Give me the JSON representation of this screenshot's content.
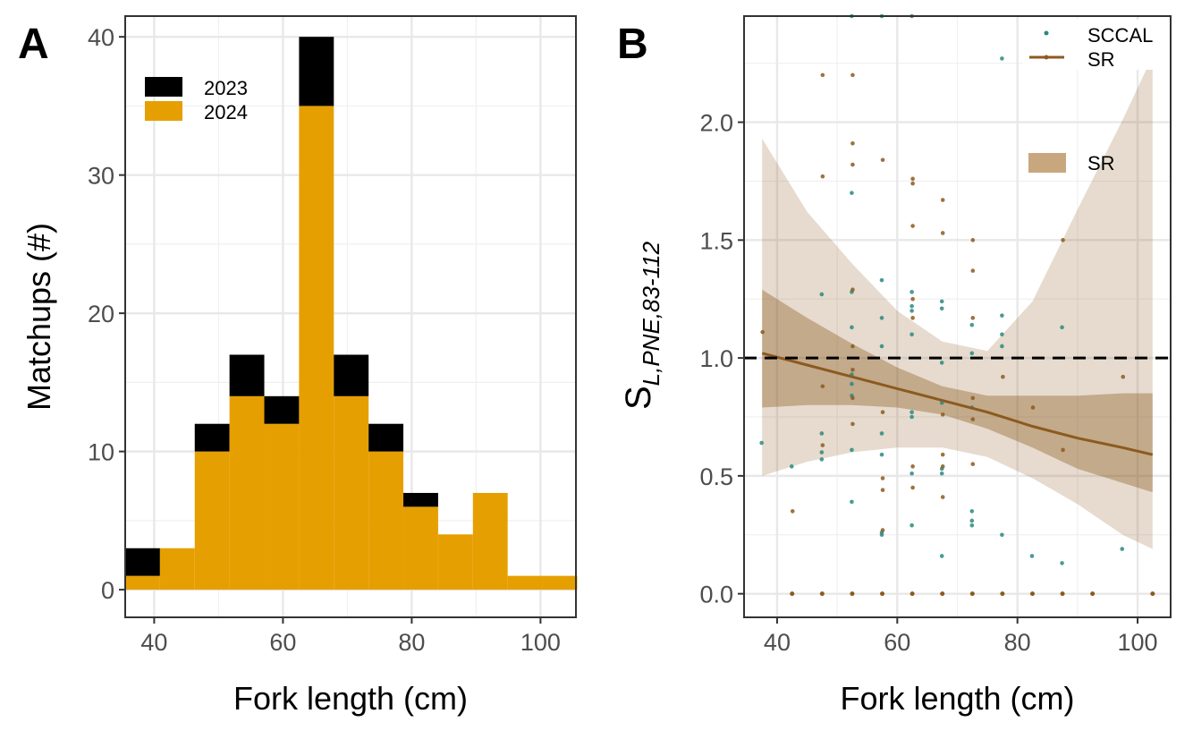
{
  "chart_data": [
    {
      "panel": "A",
      "type": "bar",
      "stacked": true,
      "xlabel": "Fork length (cm)",
      "ylabel": "Matchups (#)",
      "xlim": [
        35.5,
        105.5
      ],
      "ylim": [
        -2,
        41.5
      ],
      "xticks": [
        40,
        60,
        80,
        100
      ],
      "yticks": [
        0,
        10,
        20,
        30,
        40
      ],
      "bin_width": 5.4,
      "bin_centers": [
        38.2,
        43.6,
        49.0,
        54.4,
        59.8,
        65.2,
        70.6,
        76.0,
        81.4,
        86.8,
        92.2,
        97.6,
        103.0
      ],
      "series": [
        {
          "name": "2024",
          "color": "#E69F00",
          "values": [
            1,
            3,
            10,
            14,
            12,
            35,
            14,
            10,
            6,
            4,
            7,
            1,
            1
          ]
        },
        {
          "name": "2023",
          "color": "#000000",
          "values": [
            2,
            0,
            2,
            3,
            2,
            5,
            3,
            2,
            1,
            0,
            0,
            0,
            0
          ]
        }
      ],
      "legend": {
        "position": "top-left",
        "order": [
          "2023",
          "2024"
        ]
      },
      "grid": true
    },
    {
      "panel": "B",
      "type": "scatter",
      "xlabel": "Fork length (cm)",
      "ylabel_main": "S",
      "ylabel_sub": "L,PNE,83-112",
      "xlim": [
        34.5,
        105.5
      ],
      "ylim": [
        -0.1,
        2.45
      ],
      "xticks": [
        40,
        60,
        80,
        100
      ],
      "yticks": [
        0.0,
        0.5,
        1.0,
        1.5,
        2.0
      ],
      "ytick_labels": [
        "0.0",
        "0.5",
        "1.0",
        "1.5",
        "2.0"
      ],
      "reference_line": {
        "y": 1.0,
        "style": "dashed",
        "color": "#000000"
      },
      "grid": true,
      "series": [
        {
          "name": "SCCAL",
          "color": "#2A8A80",
          "points": [
            [
              37.5,
              0.64
            ],
            [
              42.5,
              0.54
            ],
            [
              47.5,
              0.57
            ],
            [
              47.5,
              0.6
            ],
            [
              47.5,
              0.68
            ],
            [
              47.5,
              1.27
            ],
            [
              52.5,
              0.39
            ],
            [
              52.5,
              0.61
            ],
            [
              52.5,
              0.84
            ],
            [
              52.5,
              0.89
            ],
            [
              52.5,
              0.93
            ],
            [
              52.5,
              1.13
            ],
            [
              52.5,
              1.28
            ],
            [
              52.5,
              1.7
            ],
            [
              52.5,
              2.45
            ],
            [
              57.5,
              0.25
            ],
            [
              57.5,
              0.26
            ],
            [
              57.5,
              0.59
            ],
            [
              57.5,
              0.68
            ],
            [
              57.5,
              1.05
            ],
            [
              57.5,
              1.17
            ],
            [
              57.5,
              1.33
            ],
            [
              57.5,
              2.45
            ],
            [
              62.5,
              0.29
            ],
            [
              62.5,
              0.51
            ],
            [
              62.5,
              0.75
            ],
            [
              62.5,
              0.77
            ],
            [
              62.5,
              1.1
            ],
            [
              62.5,
              1.2
            ],
            [
              62.5,
              1.22
            ],
            [
              62.5,
              1.28
            ],
            [
              62.5,
              2.45
            ],
            [
              67.5,
              0.16
            ],
            [
              67.5,
              0.51
            ],
            [
              67.5,
              0.53
            ],
            [
              67.5,
              0.81
            ],
            [
              67.5,
              0.98
            ],
            [
              67.5,
              1.21
            ],
            [
              67.5,
              1.24
            ],
            [
              72.5,
              0.29
            ],
            [
              72.5,
              0.31
            ],
            [
              72.5,
              0.35
            ],
            [
              72.5,
              0.79
            ],
            [
              72.5,
              1.02
            ],
            [
              72.5,
              1.14
            ],
            [
              77.5,
              0.25
            ],
            [
              77.5,
              1.05
            ],
            [
              77.5,
              1.1
            ],
            [
              77.5,
              1.18
            ],
            [
              77.5,
              2.27
            ],
            [
              82.5,
              0.16
            ],
            [
              87.5,
              0.13
            ],
            [
              87.5,
              1.13
            ],
            [
              97.5,
              0.19
            ]
          ]
        },
        {
          "name": "SR",
          "color": "#8C5A1F",
          "points": [
            [
              37.5,
              1.11
            ],
            [
              42.5,
              0.35
            ],
            [
              47.5,
              0.63
            ],
            [
              47.5,
              0.88
            ],
            [
              47.5,
              1.77
            ],
            [
              47.5,
              2.2
            ],
            [
              52.5,
              0.72
            ],
            [
              52.5,
              0.83
            ],
            [
              52.5,
              0.95
            ],
            [
              52.5,
              1.05
            ],
            [
              52.5,
              1.29
            ],
            [
              52.5,
              1.82
            ],
            [
              52.5,
              1.91
            ],
            [
              52.5,
              2.2
            ],
            [
              57.5,
              0.27
            ],
            [
              57.5,
              0.44
            ],
            [
              57.5,
              0.49
            ],
            [
              57.5,
              0.77
            ],
            [
              57.5,
              1.84
            ],
            [
              62.5,
              0.45
            ],
            [
              62.5,
              0.54
            ],
            [
              62.5,
              1.17
            ],
            [
              62.5,
              1.25
            ],
            [
              62.5,
              1.56
            ],
            [
              62.5,
              1.74
            ],
            [
              62.5,
              1.76
            ],
            [
              67.5,
              0.41
            ],
            [
              67.5,
              0.54
            ],
            [
              67.5,
              0.59
            ],
            [
              67.5,
              0.76
            ],
            [
              67.5,
              1.67
            ],
            [
              67.5,
              1.53
            ],
            [
              72.5,
              0.55
            ],
            [
              72.5,
              0.74
            ],
            [
              72.5,
              0.83
            ],
            [
              72.5,
              1.17
            ],
            [
              72.5,
              1.37
            ],
            [
              72.5,
              1.5
            ],
            [
              77.5,
              0.92
            ],
            [
              82.5,
              0.79
            ],
            [
              87.5,
              0.61
            ],
            [
              87.5,
              1.5
            ],
            [
              97.5,
              0.92
            ]
          ],
          "zero_points_x": [
            42.5,
            47.5,
            52.5,
            57.5,
            62.5,
            67.5,
            72.5,
            77.5,
            82.5,
            87.5,
            92.5,
            102.5
          ]
        }
      ],
      "fit_SR": {
        "color": "#8C5A1F",
        "x": [
          37.5,
          45,
          52.5,
          60,
          67.5,
          75,
          82.5,
          90,
          97.5,
          102.5
        ],
        "y": [
          1.02,
          0.97,
          0.92,
          0.87,
          0.82,
          0.77,
          0.71,
          0.66,
          0.62,
          0.59
        ],
        "ci_lo": [
          0.79,
          0.8,
          0.8,
          0.79,
          0.76,
          0.7,
          0.62,
          0.53,
          0.47,
          0.43
        ],
        "ci_hi": [
          1.29,
          1.17,
          1.06,
          0.96,
          0.88,
          0.84,
          0.84,
          0.84,
          0.85,
          0.85
        ],
        "pi_lo": [
          0.5,
          0.56,
          0.6,
          0.62,
          0.62,
          0.58,
          0.49,
          0.38,
          0.25,
          0.19
        ],
        "pi_hi": [
          1.93,
          1.62,
          1.4,
          1.2,
          1.07,
          1.03,
          1.24,
          1.63,
          2.01,
          2.28
        ]
      },
      "legend": [
        {
          "label": "SCCAL",
          "kind": "point",
          "color": "#2A8A80"
        },
        {
          "label": "SR",
          "kind": "line",
          "color": "#8C5A1F"
        },
        {
          "label": "SR",
          "kind": "band",
          "color": "#C8A77E"
        }
      ]
    }
  ],
  "panel_labels": {
    "a": "A",
    "b": "B"
  }
}
